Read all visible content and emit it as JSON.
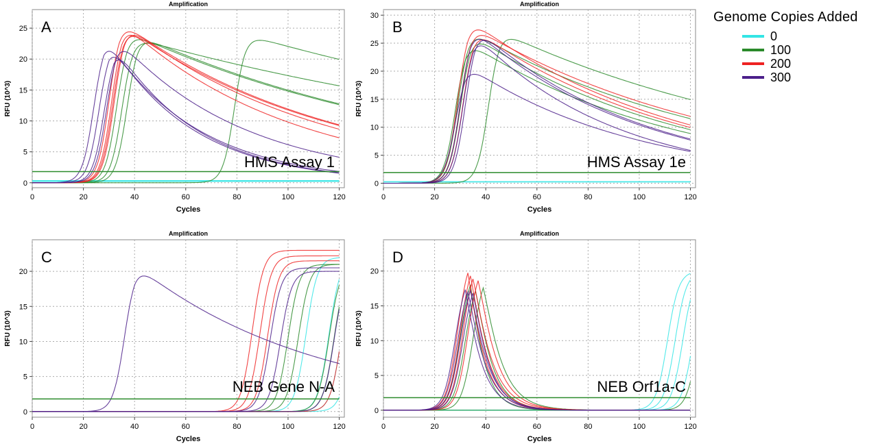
{
  "legend": {
    "title": "Genome Copies Added",
    "items": [
      {
        "label": "0",
        "color": "#33e5e5"
      },
      {
        "label": "100",
        "color": "#2a8a2a"
      },
      {
        "label": "200",
        "color": "#ee2222"
      },
      {
        "label": "300",
        "color": "#4b1f8a"
      }
    ]
  },
  "chart_data": [
    {
      "type": "line",
      "panel_letter": "A",
      "title": "Amplification",
      "xlabel": "Cycles",
      "ylabel": "RFU (10^3)",
      "annotation": "HMS Assay 1",
      "xlim": [
        0,
        122
      ],
      "ylim": [
        -0.8,
        28
      ],
      "xticks": [
        0,
        20,
        40,
        60,
        80,
        100,
        120
      ],
      "yticks": [
        0,
        5,
        10,
        15,
        20,
        25
      ],
      "grid": true,
      "threshold": 1.8,
      "series": [
        {
          "group": "0",
          "ct": null,
          "plateau": 0.3,
          "decay": 0
        },
        {
          "group": "0",
          "ct": null,
          "plateau": 0.2,
          "decay": 0
        },
        {
          "group": "0",
          "ct": null,
          "plateau": 0.35,
          "decay": 0
        },
        {
          "group": "100",
          "ct": 29,
          "plateau": 24.5,
          "decay": 0.008
        },
        {
          "group": "100",
          "ct": 31,
          "plateau": 23.5,
          "decay": 0.005
        },
        {
          "group": "100",
          "ct": 33,
          "plateau": 24.0,
          "decay": 0.008
        },
        {
          "group": "100",
          "ct": 75,
          "plateau": 24.0,
          "decay": 0.005
        },
        {
          "group": "200",
          "ct": 26,
          "plateau": 26.3,
          "decay": 0.012
        },
        {
          "group": "200",
          "ct": 27,
          "plateau": 26.0,
          "decay": 0.015
        },
        {
          "group": "200",
          "ct": 27.5,
          "plateau": 25.5,
          "decay": 0.012
        },
        {
          "group": "200",
          "ct": 28,
          "plateau": 25.8,
          "decay": 0.013
        },
        {
          "group": "300",
          "ct": 20,
          "plateau": 24.0,
          "decay": 0.028
        },
        {
          "group": "300",
          "ct": 22,
          "plateau": 23.0,
          "decay": 0.03
        },
        {
          "group": "300",
          "ct": 24,
          "plateau": 22.5,
          "decay": 0.03
        },
        {
          "group": "300",
          "ct": 25,
          "plateau": 23.5,
          "decay": 0.02
        }
      ]
    },
    {
      "type": "line",
      "panel_letter": "B",
      "title": "Amplification",
      "xlabel": "Cycles",
      "ylabel": "RFU (10^3)",
      "annotation": "HMS Assay 1e",
      "xlim": [
        0,
        122
      ],
      "ylim": [
        -0.8,
        31
      ],
      "xticks": [
        0,
        20,
        40,
        60,
        80,
        100,
        120
      ],
      "yticks": [
        0,
        5,
        10,
        15,
        20,
        25,
        30
      ],
      "grid": true,
      "threshold": 1.9,
      "series": [
        {
          "group": "0",
          "ct": null,
          "plateau": 0.2,
          "decay": 0
        },
        {
          "group": "0",
          "ct": null,
          "plateau": 0.3,
          "decay": 0
        },
        {
          "group": "100",
          "ct": 24,
          "plateau": 25.5,
          "decay": 0.012
        },
        {
          "group": "100",
          "ct": 25,
          "plateau": 27.5,
          "decay": 0.01
        },
        {
          "group": "100",
          "ct": 26,
          "plateau": 26.8,
          "decay": 0.012
        },
        {
          "group": "100",
          "ct": 37,
          "plateau": 27.2,
          "decay": 0.008
        },
        {
          "group": "200",
          "ct": 25,
          "plateau": 29.5,
          "decay": 0.012
        },
        {
          "group": "200",
          "ct": 26,
          "plateau": 28.2,
          "decay": 0.01
        },
        {
          "group": "200",
          "ct": 27,
          "plateau": 27.6,
          "decay": 0.012
        },
        {
          "group": "300",
          "ct": 24,
          "plateau": 21.2,
          "decay": 0.015
        },
        {
          "group": "300",
          "ct": 26,
          "plateau": 28.0,
          "decay": 0.015
        },
        {
          "group": "300",
          "ct": 27,
          "plateau": 27.0,
          "decay": 0.018
        },
        {
          "group": "300",
          "ct": 28,
          "plateau": 27.8,
          "decay": 0.015
        }
      ]
    },
    {
      "type": "line",
      "panel_letter": "C",
      "title": "Amplification",
      "xlabel": "Cycles",
      "ylabel": "RFU (10^3)",
      "annotation": "NEB Gene N-A",
      "xlim": [
        0,
        122
      ],
      "ylim": [
        -0.8,
        24.5
      ],
      "xticks": [
        0,
        20,
        40,
        60,
        80,
        100,
        120
      ],
      "yticks": [
        0,
        5,
        10,
        15,
        20
      ],
      "grid": true,
      "threshold": 1.8,
      "series": [
        {
          "group": "0",
          "ct": 103,
          "plateau": 22.0,
          "decay": 0
        },
        {
          "group": "0",
          "ct": 112,
          "plateau": 22.0,
          "decay": 0
        },
        {
          "group": "0",
          "ct": 117,
          "plateau": 22.0,
          "decay": 0
        },
        {
          "group": "0",
          "ct": 121,
          "plateau": 22.0,
          "decay": 0
        },
        {
          "group": "100",
          "ct": 96,
          "plateau": 21.0,
          "decay": 0
        },
        {
          "group": "100",
          "ct": 100,
          "plateau": 21.0,
          "decay": 0
        },
        {
          "group": "100",
          "ct": 112,
          "plateau": 21.0,
          "decay": 0
        },
        {
          "group": "100",
          "ct": 114,
          "plateau": 21.0,
          "decay": 0
        },
        {
          "group": "200",
          "ct": 82,
          "plateau": 23.0,
          "decay": 0
        },
        {
          "group": "200",
          "ct": 85,
          "plateau": 22.2,
          "decay": 0
        },
        {
          "group": "200",
          "ct": 88,
          "plateau": 21.5,
          "decay": 0
        },
        {
          "group": "200",
          "ct": 117,
          "plateau": 22.0,
          "decay": 0
        },
        {
          "group": "300",
          "ct": 32,
          "plateau": 21.0,
          "decay": 0.014
        },
        {
          "group": "300",
          "ct": 89,
          "plateau": 20.5,
          "decay": 0
        },
        {
          "group": "300",
          "ct": 93,
          "plateau": 20.0,
          "decay": 0
        },
        {
          "group": "300",
          "ct": 114,
          "plateau": 20.5,
          "decay": 0
        }
      ]
    },
    {
      "type": "line",
      "panel_letter": "D",
      "title": "Amplification",
      "xlabel": "Cycles",
      "ylabel": "RFU (10^3)",
      "annotation": "NEB Orf1a-C",
      "xlim": [
        0,
        122
      ],
      "ylim": [
        -1.0,
        24.5
      ],
      "xticks": [
        0,
        20,
        40,
        60,
        80,
        100,
        120
      ],
      "yticks": [
        0,
        5,
        10,
        15,
        20
      ],
      "grid": true,
      "threshold": 1.8,
      "series": [
        {
          "group": "0",
          "ct": 107,
          "plateau": 20.0,
          "decay": 0
        },
        {
          "group": "0",
          "ct": 110,
          "plateau": 20.0,
          "decay": 0
        },
        {
          "group": "0",
          "ct": 113,
          "plateau": 20.0,
          "decay": 0
        },
        {
          "group": "0",
          "ct": 117,
          "plateau": 20.0,
          "decay": 0
        },
        {
          "group": "100",
          "ct": 26,
          "plateau": 21.0,
          "decay": 0.2
        },
        {
          "group": "100",
          "ct": 28,
          "plateau": 20.0,
          "decay": 0.17
        },
        {
          "group": "100",
          "ct": 31,
          "plateau": 20.5,
          "decay": 0.15
        },
        {
          "group": "100",
          "ct": 119,
          "plateau": 20.0,
          "decay": 0
        },
        {
          "group": "200",
          "ct": 25,
          "plateau": 23.0,
          "decay": 0.17
        },
        {
          "group": "200",
          "ct": 26,
          "plateau": 22.5,
          "decay": 0.16
        },
        {
          "group": "200",
          "ct": 27,
          "plateau": 22.0,
          "decay": 0.15
        },
        {
          "group": "200",
          "ct": 29,
          "plateau": 21.7,
          "decay": 0.15
        },
        {
          "group": "300",
          "ct": 24,
          "plateau": 20.2,
          "decay": 0.17
        },
        {
          "group": "300",
          "ct": 25,
          "plateau": 19.8,
          "decay": 0.16
        },
        {
          "group": "300",
          "ct": 26,
          "plateau": 20.0,
          "decay": 0.16
        },
        {
          "group": "300",
          "ct": 27,
          "plateau": 19.6,
          "decay": 0.17
        }
      ]
    }
  ]
}
